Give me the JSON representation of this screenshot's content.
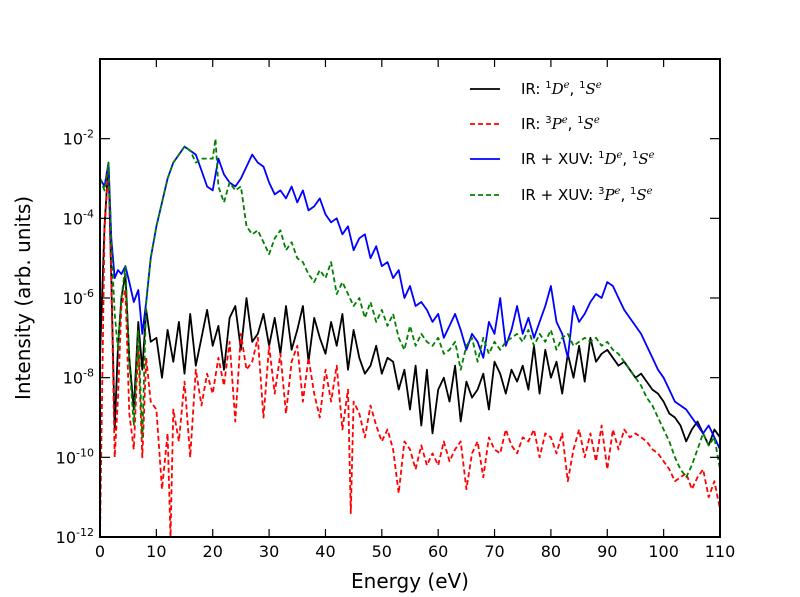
{
  "chart_data": {
    "type": "line",
    "title": "",
    "xlabel": "Energy (eV)",
    "ylabel": "Intensity (arb. units)",
    "xlim": [
      0,
      110
    ],
    "ylim_log10": [
      -12,
      0
    ],
    "y_scale": "log",
    "grid": false,
    "legend_position": "top-right",
    "x_ticks": [
      0,
      10,
      20,
      30,
      40,
      50,
      60,
      70,
      80,
      90,
      100,
      110
    ],
    "y_ticks": [
      {
        "value": -12,
        "label": "10",
        "exp": "-12"
      },
      {
        "value": -10,
        "label": "10",
        "exp": "-10"
      },
      {
        "value": -8,
        "label": "10",
        "exp": "-8"
      },
      {
        "value": -6,
        "label": "10",
        "exp": "-6"
      },
      {
        "value": -4,
        "label": "10",
        "exp": "-4"
      },
      {
        "value": -2,
        "label": "10",
        "exp": "-2"
      }
    ],
    "series": [
      {
        "name": "IR: ¹Dᵉ, ¹Sᵉ",
        "name_parts": {
          "prefix": "IR: ",
          "sym1": "D",
          "sup1pre": "1",
          "sup1post": "e",
          "sym2": "S",
          "sup2pre": "1",
          "sup2post": "e"
        },
        "color": "#000000",
        "dash": "solid",
        "x": [
          0,
          0.8,
          1.5,
          2.0,
          2.6,
          3.2,
          3.8,
          4.5,
          5.2,
          6.0,
          6.8,
          7.5,
          8.2,
          9,
          10,
          11,
          12,
          13,
          14,
          15,
          16,
          17,
          18,
          19,
          20,
          21,
          22,
          23,
          24,
          25,
          26,
          27,
          28,
          29,
          30,
          31,
          32,
          33,
          34,
          35,
          36,
          37,
          38,
          39,
          40,
          41,
          42,
          43,
          44,
          45,
          46,
          47,
          48,
          49,
          50,
          51,
          52,
          53,
          54,
          55,
          56,
          57,
          58,
          59,
          60,
          61,
          62,
          63,
          64,
          65,
          66,
          67,
          68,
          69,
          70,
          71,
          72,
          73,
          74,
          75,
          76,
          77,
          78,
          79,
          80,
          81,
          82,
          83,
          84,
          85,
          86,
          87,
          88,
          89,
          90,
          91,
          92,
          93,
          94,
          95,
          96,
          97,
          98,
          99,
          100,
          101,
          102,
          103,
          104,
          105,
          106,
          107,
          108,
          109,
          110
        ],
        "y_log10": [
          -7.5,
          -4.2,
          -2.6,
          -5.5,
          -9.3,
          -7.2,
          -6.0,
          -5.4,
          -7.5,
          -8.8,
          -6.6,
          -7.8,
          -6.3,
          -7.1,
          -7.0,
          -8.0,
          -6.8,
          -7.6,
          -6.6,
          -7.9,
          -6.4,
          -7.7,
          -7.0,
          -6.3,
          -7.2,
          -6.7,
          -7.8,
          -6.5,
          -6.2,
          -7.3,
          -6.0,
          -7.1,
          -6.9,
          -6.4,
          -7.2,
          -6.5,
          -7.4,
          -6.2,
          -7.3,
          -6.8,
          -6.2,
          -7.6,
          -6.5,
          -7.0,
          -7.4,
          -6.6,
          -7.2,
          -6.4,
          -7.8,
          -6.8,
          -7.5,
          -7.9,
          -7.7,
          -7.2,
          -7.9,
          -7.5,
          -7.6,
          -8.3,
          -7.8,
          -8.8,
          -7.7,
          -9.2,
          -7.8,
          -9.4,
          -8.3,
          -8.0,
          -8.6,
          -7.7,
          -9.1,
          -8.1,
          -8.5,
          -8.3,
          -7.9,
          -8.8,
          -7.6,
          -7.9,
          -8.4,
          -7.8,
          -8.1,
          -7.7,
          -8.3,
          -7.2,
          -8.4,
          -7.3,
          -8.0,
          -7.6,
          -8.4,
          -7.4,
          -8.0,
          -7.2,
          -8.1,
          -7.0,
          -7.6,
          -7.4,
          -7.3,
          -7.5,
          -7.7,
          -7.6,
          -7.8,
          -8.0,
          -7.9,
          -8.1,
          -8.3,
          -8.4,
          -8.6,
          -8.9,
          -9.0,
          -9.2,
          -9.6,
          -9.3,
          -9.1,
          -9.4,
          -9.7,
          -9.3,
          -9.5
        ]
      },
      {
        "name": "IR: ³Pᵉ, ¹Sᵉ",
        "name_parts": {
          "prefix": "IR: ",
          "sym1": "P",
          "sup1pre": "3",
          "sup1post": "e",
          "sym2": "S",
          "sup2pre": "1",
          "sup2post": "e"
        },
        "color": "#ff0000",
        "dash": "dashed",
        "x": [
          0,
          0.8,
          1.5,
          2.0,
          2.6,
          3.2,
          3.8,
          4.5,
          5.2,
          6.0,
          6.8,
          7.5,
          8.2,
          9,
          10,
          11,
          12,
          12.5,
          13,
          14,
          15,
          16,
          17,
          18,
          19,
          20,
          21,
          22,
          23,
          24,
          25,
          26,
          27,
          28,
          29,
          30,
          31,
          32,
          33,
          34,
          35,
          36,
          37,
          38,
          39,
          40,
          41,
          42,
          43,
          44,
          44.5,
          45,
          46,
          47,
          48,
          49,
          50,
          51,
          52,
          53,
          54,
          55,
          56,
          57,
          58,
          59,
          60,
          61,
          62,
          63,
          64,
          65,
          66,
          67,
          68,
          69,
          70,
          71,
          72,
          73,
          74,
          75,
          76,
          77,
          78,
          79,
          80,
          81,
          82,
          83,
          84,
          85,
          86,
          87,
          88,
          89,
          90,
          91,
          92,
          93,
          94,
          95,
          96,
          97,
          98,
          99,
          100,
          101,
          102,
          103,
          104,
          105,
          106,
          107,
          108,
          109,
          110
        ],
        "y_log10": [
          -12.0,
          -4.3,
          -2.7,
          -5.6,
          -10.0,
          -8.5,
          -6.2,
          -5.8,
          -8.9,
          -9.8,
          -7.2,
          -10.0,
          -7.5,
          -8.6,
          -8.8,
          -10.8,
          -9.4,
          -12.0,
          -8.8,
          -9.6,
          -8.1,
          -10.0,
          -7.8,
          -8.7,
          -7.9,
          -8.4,
          -7.5,
          -8.2,
          -7.1,
          -9.1,
          -6.9,
          -7.8,
          -7.6,
          -7.0,
          -9.0,
          -7.2,
          -8.4,
          -7.4,
          -8.9,
          -7.6,
          -7.2,
          -8.6,
          -7.5,
          -8.4,
          -9.0,
          -7.8,
          -8.6,
          -7.7,
          -9.3,
          -8.3,
          -11.4,
          -8.6,
          -8.9,
          -9.5,
          -8.7,
          -9.2,
          -9.6,
          -9.3,
          -9.8,
          -10.9,
          -9.6,
          -9.8,
          -10.3,
          -9.7,
          -10.2,
          -9.9,
          -10.2,
          -9.6,
          -10.1,
          -9.8,
          -9.6,
          -10.8,
          -9.9,
          -9.6,
          -10.5,
          -9.5,
          -9.8,
          -9.9,
          -9.3,
          -9.7,
          -9.9,
          -9.5,
          -9.6,
          -9.3,
          -10.0,
          -9.4,
          -9.5,
          -9.9,
          -9.4,
          -10.6,
          -9.8,
          -9.3,
          -10.0,
          -9.4,
          -10.1,
          -9.2,
          -10.3,
          -9.3,
          -9.8,
          -9.3,
          -9.5,
          -9.4,
          -9.5,
          -9.6,
          -9.8,
          -9.9,
          -10.1,
          -10.3,
          -10.6,
          -10.5,
          -10.4,
          -10.8,
          -10.5,
          -10.3,
          -11.0,
          -10.6,
          -11.3
        ]
      },
      {
        "name": "IR + XUV: ¹Dᵉ, ¹Sᵉ",
        "name_parts": {
          "prefix": "IR + XUV: ",
          "sym1": "D",
          "sup1pre": "1",
          "sup1post": "e",
          "sym2": "S",
          "sup2pre": "1",
          "sup2post": "e"
        },
        "color": "#0000ff",
        "dash": "solid",
        "x": [
          0,
          0.8,
          1.5,
          2.0,
          2.6,
          3.2,
          3.8,
          4.5,
          5.2,
          6.0,
          6.8,
          7.5,
          8.2,
          9,
          10,
          11,
          12,
          13,
          14,
          15,
          16,
          17,
          18,
          19,
          20,
          21,
          22,
          23,
          24,
          25,
          26,
          27,
          28,
          29,
          30,
          31,
          32,
          33,
          34,
          35,
          36,
          37,
          38,
          39,
          40,
          41,
          42,
          43,
          44,
          45,
          46,
          47,
          48,
          49,
          50,
          51,
          52,
          53,
          54,
          55,
          56,
          57,
          58,
          59,
          60,
          61,
          62,
          63,
          64,
          65,
          66,
          67,
          68,
          69,
          70,
          71,
          72,
          73,
          74,
          75,
          76,
          77,
          78,
          79,
          80,
          81,
          82,
          83,
          84,
          85,
          86,
          87,
          88,
          89,
          90,
          91,
          92,
          93,
          94,
          95,
          96,
          97,
          98,
          99,
          100,
          101,
          102,
          103,
          104,
          105,
          106,
          107,
          108,
          109,
          110
        ],
        "y_log10": [
          -3.0,
          -3.2,
          -2.6,
          -4.5,
          -5.5,
          -5.3,
          -5.4,
          -5.2,
          -5.6,
          -6.1,
          -5.8,
          -6.9,
          -6.1,
          -5.0,
          -4.2,
          -3.6,
          -3.0,
          -2.6,
          -2.4,
          -2.2,
          -2.3,
          -2.4,
          -2.8,
          -3.2,
          -3.3,
          -2.5,
          -2.9,
          -3.1,
          -3.2,
          -3.0,
          -2.7,
          -2.4,
          -2.6,
          -2.7,
          -3.1,
          -3.4,
          -3.3,
          -3.5,
          -3.2,
          -3.6,
          -3.3,
          -3.8,
          -3.7,
          -3.5,
          -3.9,
          -4.1,
          -4.0,
          -4.4,
          -4.2,
          -4.8,
          -4.5,
          -4.4,
          -5.0,
          -4.7,
          -5.2,
          -5.1,
          -5.5,
          -5.3,
          -6.0,
          -5.7,
          -6.2,
          -6.1,
          -6.3,
          -6.6,
          -6.4,
          -7.0,
          -6.7,
          -6.4,
          -6.8,
          -7.3,
          -6.9,
          -7.1,
          -7.5,
          -6.6,
          -6.9,
          -6.0,
          -7.2,
          -6.8,
          -6.2,
          -6.9,
          -6.5,
          -7.0,
          -6.6,
          -6.2,
          -5.7,
          -6.6,
          -6.9,
          -7.5,
          -6.2,
          -6.6,
          -6.4,
          -6.1,
          -5.9,
          -6.0,
          -5.6,
          -5.7,
          -6.0,
          -6.3,
          -6.5,
          -6.7,
          -6.9,
          -7.2,
          -7.5,
          -7.8,
          -8.0,
          -8.3,
          -8.6,
          -8.7,
          -8.8,
          -9.0,
          -9.2,
          -9.4,
          -9.2,
          -9.5,
          -9.8
        ]
      },
      {
        "name": "IR + XUV: ³Pᵉ, ¹Sᵉ",
        "name_parts": {
          "prefix": "IR + XUV: ",
          "sym1": "P",
          "sup1pre": "3",
          "sup1post": "e",
          "sym2": "S",
          "sup2pre": "1",
          "sup2post": "e"
        },
        "color": "#008000",
        "dash": "dashed",
        "x": [
          0,
          0.8,
          1.5,
          2.0,
          2.6,
          3.2,
          3.8,
          4.5,
          5.2,
          6.0,
          6.8,
          7.5,
          8.2,
          9,
          10,
          11,
          12,
          13,
          14,
          15,
          16,
          17,
          18,
          19,
          20,
          20.5,
          21,
          22,
          23,
          24,
          25,
          26,
          27,
          28,
          29,
          30,
          31,
          32,
          33,
          34,
          35,
          36,
          37,
          38,
          39,
          40,
          41,
          42,
          43,
          44,
          45,
          46,
          47,
          48,
          49,
          50,
          51,
          52,
          53,
          54,
          55,
          56,
          57,
          58,
          59,
          60,
          61,
          62,
          63,
          64,
          65,
          66,
          67,
          68,
          69,
          70,
          71,
          72,
          73,
          74,
          75,
          76,
          77,
          78,
          79,
          80,
          81,
          82,
          83,
          84,
          85,
          86,
          87,
          88,
          89,
          90,
          91,
          92,
          93,
          94,
          95,
          96,
          97,
          98,
          99,
          100,
          101,
          102,
          103,
          104,
          105,
          106,
          107,
          108,
          109,
          110
        ],
        "y_log10": [
          -3.0,
          -3.3,
          -2.6,
          -4.6,
          -6.4,
          -7.3,
          -6.0,
          -5.2,
          -7.6,
          -9.2,
          -6.8,
          -9.5,
          -6.1,
          -5.0,
          -4.2,
          -3.6,
          -3.0,
          -2.6,
          -2.4,
          -2.2,
          -2.3,
          -2.6,
          -2.5,
          -2.5,
          -2.5,
          -2.0,
          -3.2,
          -3.6,
          -3.1,
          -3.3,
          -3.2,
          -4.2,
          -4.4,
          -4.3,
          -4.6,
          -4.9,
          -4.5,
          -4.3,
          -4.8,
          -4.6,
          -5.0,
          -5.1,
          -5.4,
          -5.6,
          -5.3,
          -5.5,
          -5.1,
          -5.9,
          -5.6,
          -5.9,
          -6.2,
          -6.0,
          -6.5,
          -6.1,
          -6.6,
          -6.3,
          -6.7,
          -6.4,
          -7.0,
          -7.3,
          -6.7,
          -7.2,
          -6.9,
          -7.1,
          -7.2,
          -7.0,
          -7.4,
          -7.3,
          -7.1,
          -7.8,
          -7.2,
          -7.0,
          -7.6,
          -7.0,
          -7.4,
          -7.1,
          -7.3,
          -7.1,
          -7.0,
          -6.9,
          -7.1,
          -6.8,
          -7.2,
          -6.9,
          -7.1,
          -6.8,
          -7.3,
          -7.0,
          -6.9,
          -7.2,
          -7.1,
          -7.0,
          -7.1,
          -7.0,
          -7.2,
          -7.1,
          -7.3,
          -7.4,
          -7.6,
          -7.8,
          -8.0,
          -8.2,
          -8.5,
          -8.7,
          -9.0,
          -9.3,
          -9.6,
          -10.0,
          -10.3,
          -10.5,
          -10.2,
          -9.8,
          -9.4,
          -9.7,
          -9.5,
          -10.3
        ]
      }
    ]
  }
}
